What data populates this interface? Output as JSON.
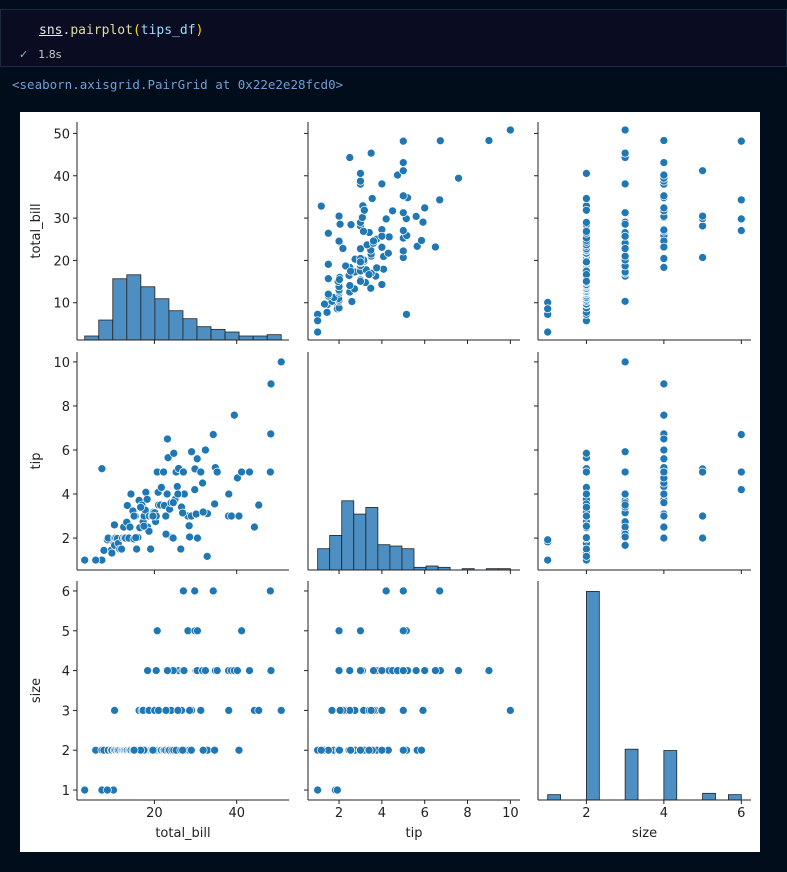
{
  "cell": {
    "code": [
      "sns",
      ".",
      "pairplot",
      "(",
      "tips_df",
      ")"
    ],
    "time": "1.8s",
    "output": "<seaborn.axisgrid.PairGrid at 0x22e2e28fcd0>"
  },
  "chart_data": {
    "type": "pairplot",
    "color": "#1f77b4",
    "hist_color": "#4d8fc2",
    "variables": [
      "total_bill",
      "tip",
      "size"
    ],
    "lims": [
      [
        1.2,
        52.7
      ],
      [
        0.55,
        10.45
      ],
      [
        0.75,
        6.25
      ]
    ],
    "xticks": [
      [
        20,
        40
      ],
      [
        2,
        4,
        6,
        8,
        10
      ],
      [
        2,
        4,
        6
      ]
    ],
    "yticks": [
      [
        10,
        20,
        30,
        40,
        50
      ],
      [
        2,
        4,
        6,
        8,
        10
      ],
      [
        1,
        2,
        3,
        4,
        5,
        6
      ]
    ],
    "histograms": [
      {
        "bins": [
          3.07,
          6.48,
          9.89,
          13.3,
          16.71,
          20.12,
          23.53,
          26.94,
          30.35,
          33.76,
          37.17,
          40.58,
          43.99,
          47.4,
          50.81
        ],
        "counts": [
          3,
          15,
          46,
          49,
          40,
          31,
          22,
          16,
          10,
          8,
          6,
          3,
          3,
          4
        ]
      },
      {
        "bins": [
          1,
          1.5625,
          2.125,
          2.6875,
          3.25,
          3.8125,
          4.375,
          4.9375,
          5.5,
          6.0625,
          6.625,
          7.1875,
          7.75,
          8.3125,
          8.875,
          9.4375,
          10
        ],
        "counts": [
          16,
          26,
          52,
          42,
          47,
          19,
          18,
          16,
          2,
          3,
          2,
          0,
          1,
          0,
          1,
          1
        ]
      },
      {
        "bins": [
          1,
          1.3333,
          1.6667,
          2,
          2.3333,
          2.6667,
          3,
          3.3333,
          3.6667,
          4,
          4.3333,
          4.6667,
          5,
          5.3333,
          5.6667,
          6
        ],
        "counts": [
          4,
          0,
          0,
          156,
          0,
          0,
          38,
          0,
          0,
          37,
          0,
          0,
          5,
          0,
          4
        ]
      }
    ],
    "columns": [
      [
        3.07,
        7.25,
        10.07,
        8.58,
        5.75,
        7.25,
        7.74,
        8.77,
        9.55,
        9.68,
        10.29,
        10.33,
        10.34,
        10.63,
        11.02,
        11.24,
        11.59,
        12.03,
        12.26,
        12.54,
        12.69,
        13.0,
        13.28,
        13.42,
        13.81,
        14.07,
        14.31,
        14.78,
        15.04,
        15.38,
        15.69,
        15.98,
        16.29,
        16.45,
        16.97,
        17.26,
        17.51,
        17.78,
        17.92,
        18.24,
        18.35,
        18.69,
        18.78,
        19.08,
        19.44,
        19.82,
        20.08,
        20.29,
        20.45,
        20.69,
        20.92,
        21.01,
        21.5,
        21.7,
        22.23,
        22.42,
        22.76,
        23.1,
        23.33,
        23.68,
        24.06,
        24.27,
        24.55,
        24.71,
        25.0,
        25.28,
        25.56,
        25.89,
        26.41,
        26.59,
        26.88,
        27.05,
        27.2,
        27.28,
        28.15,
        28.44,
        28.97,
        29.03,
        29.8,
        29.85,
        30.14,
        30.4,
        30.46,
        31.27,
        31.71,
        32.4,
        32.83,
        32.9,
        34.3,
        34.63,
        34.81,
        35.26,
        38.01,
        38.07,
        38.73,
        39.42,
        40.17,
        40.55,
        41.19,
        43.11,
        44.3,
        45.35,
        48.17,
        48.27,
        48.33,
        50.81,
        15.48,
        17.46,
        19.65,
        22.82,
        24.59,
        26.86,
        31.85,
        23.17,
        25.71,
        16.66,
        28.55,
        15.06
      ],
      [
        1,
        1,
        1.83,
        1.92,
        1,
        5.15,
        1.44,
        2,
        1.45,
        1.32,
        2.6,
        1.67,
        2,
        2,
        1.98,
        1.76,
        1.5,
        1.5,
        2,
        2.5,
        2,
        2,
        2.72,
        3.48,
        2,
        2.5,
        4,
        3.23,
        1.96,
        3,
        1.5,
        2.03,
        3.71,
        2.47,
        3.5,
        2.74,
        3,
        3.27,
        4.08,
        3.76,
        2.5,
        2.31,
        3,
        1.5,
        3,
        3.18,
        3.15,
        2.75,
        3,
        5,
        4.08,
        3.5,
        3.5,
        4.3,
        5,
        3.48,
        3,
        4,
        5.65,
        3.31,
        3.6,
        2.03,
        2,
        5.85,
        3.75,
        5,
        4.34,
        5.16,
        1.5,
        3.41,
        3.12,
        5,
        4,
        4,
        3,
        2.56,
        3,
        5.92,
        4.2,
        5.14,
        3.09,
        5.6,
        2,
        5,
        4.5,
        6,
        1.17,
        3.11,
        6.7,
        3.55,
        5.2,
        5,
        3,
        4,
        3,
        7.58,
        4.73,
        3,
        5,
        5,
        2.5,
        3.5,
        5,
        6.73,
        9,
        10,
        2.02,
        2.54,
        3,
        2.18,
        3.61,
        3.14,
        3.18,
        6.5,
        4,
        3.4,
        2.05,
        3
      ],
      [
        1,
        1,
        1,
        1,
        2,
        2,
        2,
        2,
        2,
        2,
        2,
        3,
        2,
        2,
        2,
        2,
        2,
        2,
        2,
        2,
        2,
        2,
        2,
        2,
        2,
        2,
        2,
        2,
        2,
        2,
        2,
        2,
        3,
        2,
        3,
        3,
        2,
        2,
        2,
        2,
        4,
        3,
        2,
        2,
        2,
        2,
        3,
        2,
        4,
        5,
        2,
        3,
        2,
        2,
        2,
        2,
        2,
        3,
        2,
        2,
        3,
        2,
        4,
        2,
        4,
        2,
        4,
        4,
        2,
        3,
        4,
        6,
        4,
        2,
        5,
        2,
        2,
        3,
        6,
        5,
        4,
        4,
        5,
        3,
        4,
        4,
        2,
        2,
        6,
        2,
        4,
        4,
        4,
        3,
        4,
        4,
        4,
        2,
        5,
        4,
        3,
        3,
        6,
        4,
        4,
        3,
        2,
        2,
        2,
        3,
        4,
        2,
        2,
        4,
        3,
        2,
        3,
        2
      ]
    ]
  }
}
